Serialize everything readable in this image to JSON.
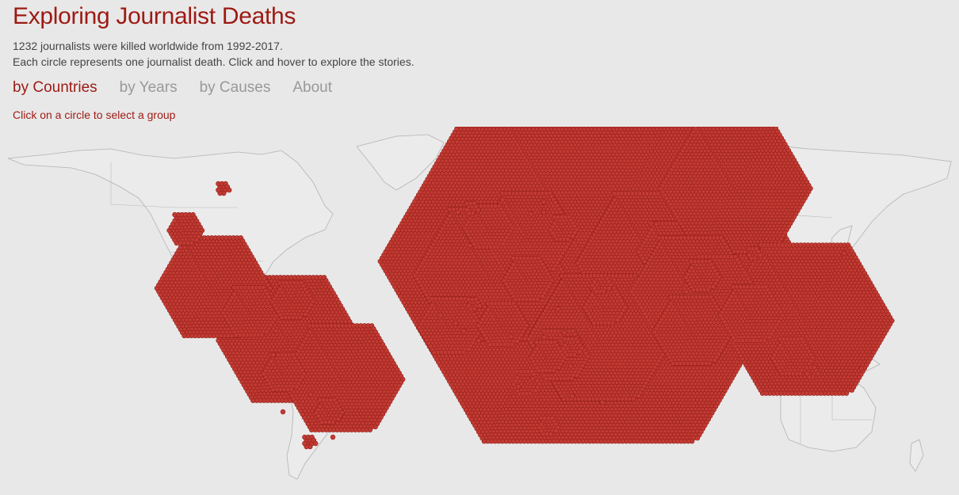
{
  "header": {
    "title": "Exploring Journalist Deaths",
    "subtitle_line1": "1232 journalists were killed worldwide from 1992-2017.",
    "subtitle_line2": "Each circle represents one journalist death. Click and hover to explore the stories."
  },
  "tabs": [
    {
      "label": "by Countries",
      "active": true
    },
    {
      "label": "by Years",
      "active": false
    },
    {
      "label": "by Causes",
      "active": false
    },
    {
      "label": "About",
      "active": false
    }
  ],
  "hint": "Click on a circle to select a group",
  "colors": {
    "accent": "#9c1a14",
    "dot_fill": "#c23b33",
    "dot_stroke": "#8f1d18",
    "background": "#e9e8e8"
  }
}
